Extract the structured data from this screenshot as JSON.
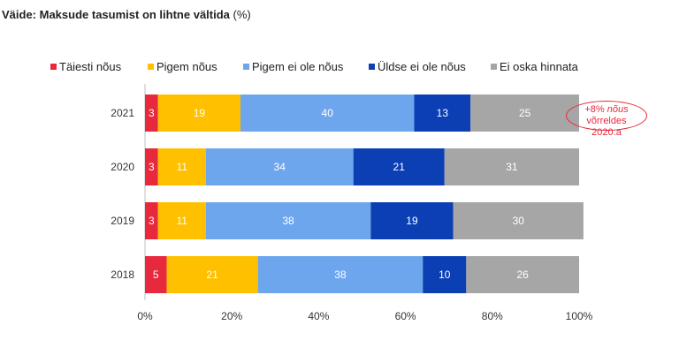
{
  "header": {
    "title_bold": "Väide: Maksude tasumist on lihtne vältida",
    "title_unit": " (%)"
  },
  "annotation": {
    "prefix": "+8% ",
    "italic": "nõus",
    "suffix": " võrreldes",
    "line2": "2020.a"
  },
  "chart_data": {
    "type": "bar",
    "orientation": "horizontal",
    "stacked": true,
    "categories": [
      "2021",
      "2020",
      "2019",
      "2018"
    ],
    "series": [
      {
        "name": "Täiesti nõus",
        "color": "#e8283c",
        "values": [
          3,
          3,
          3,
          5
        ]
      },
      {
        "name": "Pigem nõus",
        "color": "#ffc000",
        "values": [
          19,
          11,
          11,
          21
        ]
      },
      {
        "name": "Pigem ei ole nõus",
        "color": "#6ea6ed",
        "values": [
          40,
          34,
          38,
          38
        ]
      },
      {
        "name": "Üldse ei ole nõus",
        "color": "#0c3fb4",
        "values": [
          13,
          21,
          19,
          10
        ]
      },
      {
        "name": "Ei oska hinnata",
        "color": "#a6a6a6",
        "values": [
          25,
          31,
          30,
          26
        ]
      }
    ],
    "xticks": [
      "0%",
      "20%",
      "40%",
      "60%",
      "80%",
      "100%"
    ],
    "xlim": [
      0,
      100
    ],
    "legend": "top",
    "grid": false
  }
}
